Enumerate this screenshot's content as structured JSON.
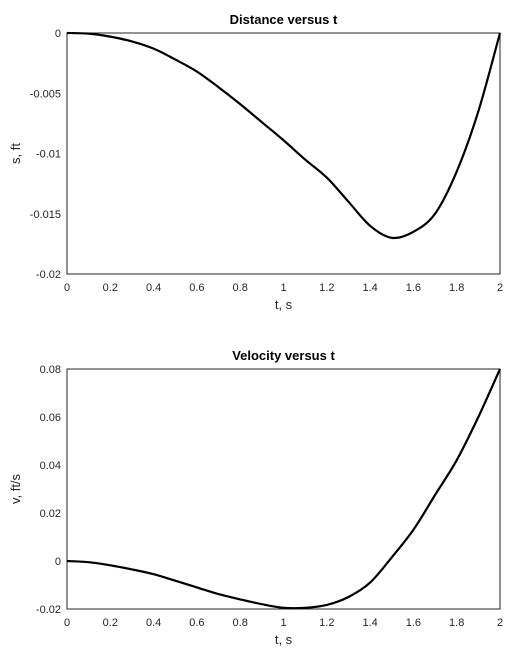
{
  "chart_data": [
    {
      "type": "line",
      "title": "Distance versus t",
      "xlabel": "t, s",
      "ylabel": "s, ft",
      "xlim": [
        0,
        2
      ],
      "ylim": [
        -0.02,
        0
      ],
      "grid": true,
      "x_ticks": [
        0,
        0.2,
        0.4,
        0.6,
        0.8,
        1,
        1.2,
        1.4,
        1.6,
        1.8,
        2
      ],
      "x_tick_labels": [
        "0",
        "0.2",
        "0.4",
        "0.6",
        "0.8",
        "1",
        "1.2",
        "1.4",
        "1.6",
        "1.8",
        "2"
      ],
      "y_ticks": [
        0,
        -0.005,
        -0.01,
        -0.015,
        -0.02
      ],
      "y_tick_labels": [
        "0",
        "-0.005",
        "-0.01",
        "-0.015",
        "-0.02"
      ],
      "series": [
        {
          "color": "#000000",
          "x": [
            0,
            0.1,
            0.2,
            0.3,
            0.4,
            0.5,
            0.6,
            0.7,
            0.8,
            0.9,
            1.0,
            1.1,
            1.2,
            1.3,
            1.4,
            1.5,
            1.6,
            1.7,
            1.8,
            1.9,
            2.0
          ],
          "y": [
            0,
            -5e-05,
            -0.0003,
            -0.0007,
            -0.0013,
            -0.0022,
            -0.0032,
            -0.0045,
            -0.0059,
            -0.0074,
            -0.0089,
            -0.0105,
            -0.012,
            -0.014,
            -0.016,
            -0.017,
            -0.0165,
            -0.015,
            -0.0115,
            -0.0065,
            0
          ]
        }
      ]
    },
    {
      "type": "line",
      "title": "Velocity versus t",
      "xlabel": "t, s",
      "ylabel": "v, ft/s",
      "xlim": [
        0,
        2
      ],
      "ylim": [
        -0.02,
        0.08
      ],
      "grid": true,
      "x_ticks": [
        0,
        0.2,
        0.4,
        0.6,
        0.8,
        1,
        1.2,
        1.4,
        1.6,
        1.8,
        2
      ],
      "x_tick_labels": [
        "0",
        "0.2",
        "0.4",
        "0.6",
        "0.8",
        "1",
        "1.2",
        "1.4",
        "1.6",
        "1.8",
        "2"
      ],
      "y_ticks": [
        0.08,
        0.06,
        0.04,
        0.02,
        0,
        -0.02
      ],
      "y_tick_labels": [
        "0.08",
        "0.06",
        "0.04",
        "0.02",
        "0",
        "-0.02"
      ],
      "series": [
        {
          "color": "#000000",
          "x": [
            0,
            0.1,
            0.2,
            0.3,
            0.4,
            0.5,
            0.6,
            0.7,
            0.8,
            0.9,
            1.0,
            1.1,
            1.2,
            1.3,
            1.4,
            1.5,
            1.6,
            1.7,
            1.8,
            1.9,
            2.0
          ],
          "y": [
            0,
            -0.0005,
            -0.0018,
            -0.0035,
            -0.0055,
            -0.0082,
            -0.011,
            -0.0138,
            -0.016,
            -0.018,
            -0.0195,
            -0.0195,
            -0.0183,
            -0.015,
            -0.009,
            0.0015,
            0.013,
            0.0275,
            0.042,
            0.06,
            0.08
          ]
        }
      ]
    }
  ]
}
